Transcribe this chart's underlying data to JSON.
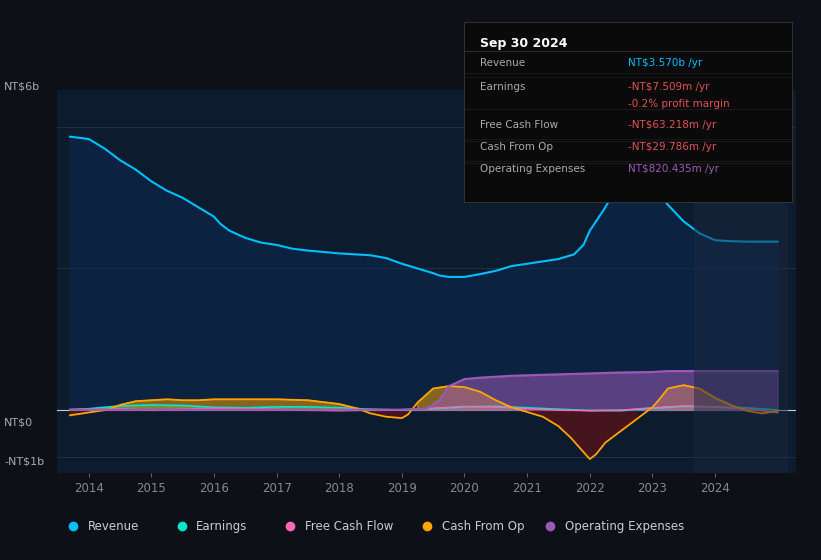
{
  "bg_color": "#0d1117",
  "plot_bg_color": "#0d1b2e",
  "grid_color": "#1e3050",
  "ylabel_top": "NT$6b",
  "ylabel_zero": "NT$0",
  "ylabel_bottom": "-NT$1b",
  "xlim": [
    2013.5,
    2025.3
  ],
  "ylim": [
    -1350000000.0,
    6800000000.0
  ],
  "x_years": [
    2014,
    2015,
    2016,
    2017,
    2018,
    2019,
    2020,
    2021,
    2022,
    2023,
    2024
  ],
  "revenue_x": [
    2013.7,
    2014.0,
    2014.25,
    2014.5,
    2014.75,
    2015.0,
    2015.25,
    2015.5,
    2015.75,
    2016.0,
    2016.1,
    2016.25,
    2016.5,
    2016.75,
    2017.0,
    2017.25,
    2017.5,
    2017.75,
    2018.0,
    2018.25,
    2018.5,
    2018.75,
    2019.0,
    2019.25,
    2019.5,
    2019.6,
    2019.75,
    2020.0,
    2020.25,
    2020.5,
    2020.75,
    2021.0,
    2021.25,
    2021.5,
    2021.75,
    2021.9,
    2022.0,
    2022.25,
    2022.5,
    2022.6,
    2022.75,
    2023.0,
    2023.1,
    2023.25,
    2023.5,
    2023.75,
    2024.0,
    2024.25,
    2024.5,
    2024.75,
    2025.0
  ],
  "revenue_y": [
    5800000000.0,
    5750000000.0,
    5550000000.0,
    5300000000.0,
    5100000000.0,
    4850000000.0,
    4650000000.0,
    4500000000.0,
    4300000000.0,
    4100000000.0,
    3950000000.0,
    3800000000.0,
    3650000000.0,
    3550000000.0,
    3500000000.0,
    3420000000.0,
    3380000000.0,
    3350000000.0,
    3320000000.0,
    3300000000.0,
    3280000000.0,
    3220000000.0,
    3100000000.0,
    3000000000.0,
    2900000000.0,
    2850000000.0,
    2820000000.0,
    2820000000.0,
    2880000000.0,
    2950000000.0,
    3050000000.0,
    3100000000.0,
    3150000000.0,
    3200000000.0,
    3300000000.0,
    3500000000.0,
    3800000000.0,
    4300000000.0,
    4900000000.0,
    5100000000.0,
    5000000000.0,
    4800000000.0,
    4600000000.0,
    4350000000.0,
    4000000000.0,
    3750000000.0,
    3600000000.0,
    3580000000.0,
    3570000000.0,
    3570000000.0,
    3570000000.0
  ],
  "earnings_x": [
    2013.7,
    2014.0,
    2014.5,
    2015.0,
    2015.5,
    2016.0,
    2016.5,
    2017.0,
    2017.5,
    2018.0,
    2018.5,
    2019.0,
    2019.5,
    2020.0,
    2020.5,
    2021.0,
    2021.5,
    2022.0,
    2022.5,
    2023.0,
    2023.5,
    2024.0,
    2024.5,
    2025.0
  ],
  "earnings_y": [
    0.0,
    20000000.0,
    80000000.0,
    100000000.0,
    90000000.0,
    50000000.0,
    40000000.0,
    60000000.0,
    60000000.0,
    40000000.0,
    10000000.0,
    -10000000.0,
    20000000.0,
    60000000.0,
    70000000.0,
    40000000.0,
    10000000.0,
    -20000000.0,
    -20000000.0,
    30000000.0,
    70000000.0,
    60000000.0,
    40000000.0,
    -7500000.0
  ],
  "cashflow_x": [
    2013.7,
    2014.0,
    2014.5,
    2015.0,
    2015.5,
    2016.0,
    2016.5,
    2017.0,
    2017.5,
    2018.0,
    2018.5,
    2019.0,
    2019.5,
    2020.0,
    2020.5,
    2021.0,
    2021.5,
    2022.0,
    2022.5,
    2023.0,
    2023.5,
    2024.0,
    2024.5,
    2025.0
  ],
  "cashflow_y": [
    0.0,
    10000000.0,
    20000000.0,
    -10000000.0,
    10000000.0,
    30000000.0,
    20000000.0,
    10000000.0,
    -10000000.0,
    -20000000.0,
    -10000000.0,
    0.0,
    30000000.0,
    70000000.0,
    60000000.0,
    20000000.0,
    -10000000.0,
    -20000000.0,
    -10000000.0,
    40000000.0,
    80000000.0,
    60000000.0,
    20000000.0,
    -63000000.0
  ],
  "cashfromop_x": [
    2013.7,
    2014.0,
    2014.3,
    2014.5,
    2014.75,
    2015.0,
    2015.25,
    2015.5,
    2015.75,
    2016.0,
    2016.5,
    2017.0,
    2017.5,
    2018.0,
    2018.3,
    2018.5,
    2018.75,
    2019.0,
    2019.1,
    2019.25,
    2019.5,
    2019.75,
    2020.0,
    2020.25,
    2020.5,
    2020.75,
    2021.0,
    2021.25,
    2021.5,
    2021.7,
    2021.9,
    2022.0,
    2022.1,
    2022.25,
    2022.5,
    2022.75,
    2023.0,
    2023.1,
    2023.25,
    2023.5,
    2023.75,
    2024.0,
    2024.25,
    2024.5,
    2024.75,
    2025.0
  ],
  "cashfromop_y": [
    -120000000.0,
    -60000000.0,
    0.0,
    100000000.0,
    180000000.0,
    200000000.0,
    220000000.0,
    200000000.0,
    200000000.0,
    220000000.0,
    220000000.0,
    220000000.0,
    200000000.0,
    120000000.0,
    20000000.0,
    -80000000.0,
    -150000000.0,
    -180000000.0,
    -100000000.0,
    150000000.0,
    450000000.0,
    500000000.0,
    480000000.0,
    380000000.0,
    200000000.0,
    50000000.0,
    -50000000.0,
    -150000000.0,
    -350000000.0,
    -600000000.0,
    -900000000.0,
    -1050000000.0,
    -950000000.0,
    -700000000.0,
    -450000000.0,
    -200000000.0,
    50000000.0,
    200000000.0,
    450000000.0,
    520000000.0,
    450000000.0,
    250000000.0,
    100000000.0,
    -20000000.0,
    -80000000.0,
    -30000000.0
  ],
  "opex_x": [
    2013.7,
    2014.0,
    2014.5,
    2015.0,
    2015.5,
    2016.0,
    2016.5,
    2017.0,
    2017.5,
    2018.0,
    2018.5,
    2019.0,
    2019.4,
    2019.6,
    2019.75,
    2020.0,
    2020.25,
    2020.5,
    2020.75,
    2021.0,
    2021.5,
    2022.0,
    2022.5,
    2023.0,
    2023.25,
    2023.5,
    2023.75,
    2024.0,
    2024.5,
    2025.0
  ],
  "opex_y": [
    0.0,
    0.0,
    0.0,
    0.0,
    0.0,
    0.0,
    0.0,
    0.0,
    0.0,
    0.0,
    0.0,
    0.0,
    20000000.0,
    200000000.0,
    500000000.0,
    650000000.0,
    680000000.0,
    700000000.0,
    720000000.0,
    730000000.0,
    750000000.0,
    770000000.0,
    790000000.0,
    800000000.0,
    820000000.0,
    820000000.0,
    820000000.0,
    820000000.0,
    820000000.0,
    820000000.0
  ],
  "revenue_color": "#00bfff",
  "earnings_color": "#00e5cc",
  "cashflow_color": "#ff69b4",
  "cashfromop_color": "#ffa500",
  "opex_color": "#9b59b6",
  "legend_items": [
    "Revenue",
    "Earnings",
    "Free Cash Flow",
    "Cash From Op",
    "Operating Expenses"
  ],
  "legend_colors": [
    "#00bfff",
    "#00e5cc",
    "#ff69b4",
    "#ffa500",
    "#9b59b6"
  ],
  "tooltip": {
    "title": "Sep 30 2024",
    "rows": [
      {
        "label": "Revenue",
        "value": "NT$3.570b /yr",
        "value_color": "#00bfff"
      },
      {
        "label": "Earnings",
        "value": "-NT$7.509m /yr",
        "value_color": "#e05252"
      },
      {
        "label": "",
        "value": "-0.2% profit margin",
        "value_color": "#e05252"
      },
      {
        "label": "Free Cash Flow",
        "value": "-NT$63.218m /yr",
        "value_color": "#e05252"
      },
      {
        "label": "Cash From Op",
        "value": "-NT$29.786m /yr",
        "value_color": "#e05252"
      },
      {
        "label": "Operating Expenses",
        "value": "NT$820.435m /yr",
        "value_color": "#9b59b6"
      }
    ]
  }
}
